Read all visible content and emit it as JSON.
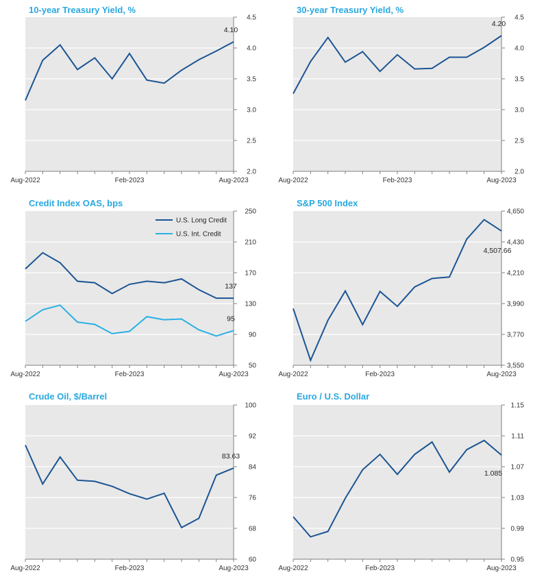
{
  "colors": {
    "title": "#29A8E0",
    "plot_bg": "#E8E8E8",
    "grid": "#FFFFFF",
    "axis": "#7F7F7F",
    "dark_line": "#1A5493",
    "light_line": "#29B0E6"
  },
  "chart_data": [
    {
      "type": "line",
      "title": "10-year Treasury Yield, %",
      "x_labels": [
        "Aug-2022",
        "Feb-2023",
        "Aug-2023"
      ],
      "x_label_index": [
        0,
        6,
        12
      ],
      "ylim": [
        2.0,
        4.5
      ],
      "yticks": [
        2.0,
        2.5,
        3.0,
        3.5,
        4.0,
        4.5
      ],
      "ytick_labels": [
        "2.0",
        "2.5",
        "3.0",
        "3.5",
        "4.0",
        "4.5"
      ],
      "series": [
        {
          "name": "10-year Treasury Yield",
          "color": "dark_line",
          "values": [
            3.15,
            3.8,
            4.05,
            3.65,
            3.84,
            3.5,
            3.91,
            3.48,
            3.43,
            3.64,
            3.81,
            3.95,
            4.1
          ]
        }
      ],
      "end_label": "4.10",
      "end_label_anchor": "above",
      "legend": []
    },
    {
      "type": "line",
      "title": "30-year Treasury Yield, %",
      "x_labels": [
        "Aug-2022",
        "Feb-2023",
        "Aug-2023"
      ],
      "x_label_index": [
        0,
        6,
        12
      ],
      "ylim": [
        2.0,
        4.5
      ],
      "yticks": [
        2.0,
        2.5,
        3.0,
        3.5,
        4.0,
        4.5
      ],
      "ytick_labels": [
        "2.0",
        "2.5",
        "3.0",
        "3.5",
        "4.0",
        "4.5"
      ],
      "series": [
        {
          "name": "30-year Treasury Yield",
          "color": "dark_line",
          "values": [
            3.26,
            3.78,
            4.17,
            3.77,
            3.94,
            3.62,
            3.89,
            3.66,
            3.67,
            3.85,
            3.85,
            4.01,
            4.2
          ]
        }
      ],
      "end_label": "4.20",
      "end_label_anchor": "above",
      "legend": []
    },
    {
      "type": "line",
      "title": "Credit Index OAS, bps",
      "x_labels": [
        "Aug-2022",
        "Feb-2023",
        "Aug-2023"
      ],
      "x_label_index": [
        0,
        6,
        12
      ],
      "ylim": [
        50,
        250
      ],
      "yticks": [
        50,
        90,
        130,
        170,
        210,
        250
      ],
      "ytick_labels": [
        "50",
        "90",
        "130",
        "170",
        "210",
        "250"
      ],
      "series": [
        {
          "name": "U.S. Long Credit",
          "color": "dark_line",
          "values": [
            175,
            196,
            183,
            159,
            157,
            143,
            155,
            159,
            157,
            162,
            148,
            137,
            137
          ]
        },
        {
          "name": "U.S. Int. Credit",
          "color": "light_line",
          "values": [
            107,
            122,
            128,
            106,
            103,
            91,
            94,
            113,
            109,
            110,
            96,
            88,
            95
          ]
        }
      ],
      "end_label": "137",
      "end_label_2": "95",
      "end_label_anchor": "above",
      "legend": [
        "U.S. Long Credit",
        "U.S. Int. Credit"
      ]
    },
    {
      "type": "line",
      "title": "S&P 500 Index",
      "x_labels": [
        "Aug-2022",
        "Feb-2023",
        "Aug-2023"
      ],
      "x_label_index": [
        0,
        5,
        12
      ],
      "ylim": [
        3550,
        4650
      ],
      "yticks": [
        3550,
        3770,
        3990,
        4210,
        4430,
        4650
      ],
      "ytick_labels": [
        "3,550",
        "3,770",
        "3,990",
        "4,210",
        "4,430",
        "4,650"
      ],
      "series": [
        {
          "name": "S&P 500 Index",
          "color": "dark_line",
          "values": [
            3955,
            3585,
            3871,
            4080,
            3840,
            4077,
            3970,
            4109,
            4169,
            4179,
            4450,
            4589,
            4507.66
          ]
        }
      ],
      "end_label": "4,507.66",
      "end_label_anchor": "below",
      "legend": []
    },
    {
      "type": "line",
      "title": "Crude Oil, $/Barrel",
      "x_labels": [
        "Aug-2022",
        "Feb-2023",
        "Aug-2023"
      ],
      "x_label_index": [
        0,
        6,
        12
      ],
      "ylim": [
        60,
        100
      ],
      "yticks": [
        60,
        68,
        76,
        84,
        92,
        100
      ],
      "ytick_labels": [
        "60",
        "68",
        "76",
        "84",
        "92",
        "100"
      ],
      "series": [
        {
          "name": "Crude Oil",
          "color": "dark_line",
          "values": [
            89.6,
            79.5,
            86.5,
            80.5,
            80.2,
            78.9,
            77.0,
            75.6,
            77.1,
            68.2,
            70.6,
            81.8,
            83.63
          ]
        }
      ],
      "end_label": "83.63",
      "end_label_anchor": "above",
      "legend": []
    },
    {
      "type": "line",
      "title": "Euro / U.S. Dollar",
      "x_labels": [
        "Aug-2022",
        "Feb-2023",
        "Aug-2023"
      ],
      "x_label_index": [
        0,
        5,
        12
      ],
      "ylim": [
        0.95,
        1.15
      ],
      "yticks": [
        0.95,
        0.99,
        1.03,
        1.07,
        1.11,
        1.15
      ],
      "ytick_labels": [
        "0.95",
        "0.99",
        "1.03",
        "1.07",
        "1.11",
        "1.15"
      ],
      "series": [
        {
          "name": "Euro / U.S. Dollar",
          "color": "dark_line",
          "values": [
            1.005,
            0.979,
            0.986,
            1.029,
            1.066,
            1.086,
            1.06,
            1.086,
            1.102,
            1.063,
            1.092,
            1.104,
            1.085
          ]
        }
      ],
      "end_label": "1.085",
      "end_label_anchor": "below",
      "legend": []
    }
  ]
}
